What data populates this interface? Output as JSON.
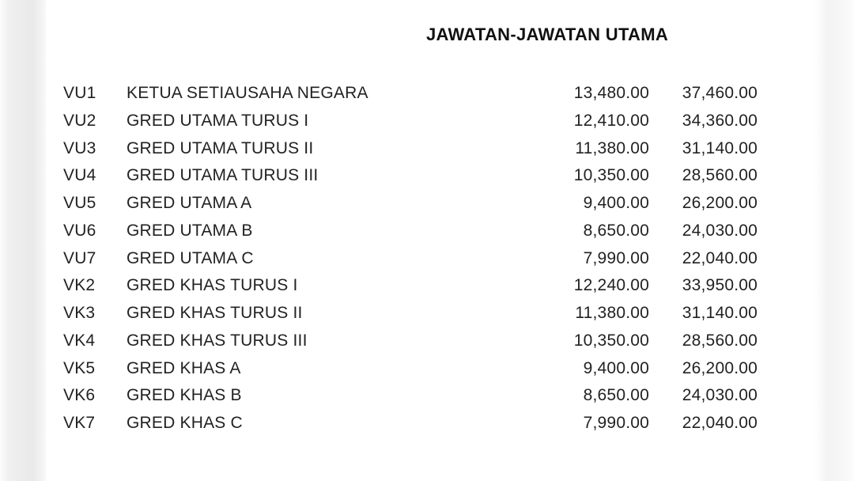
{
  "document": {
    "title": "JAWATAN-JAWATAN UTAMA"
  },
  "colors": {
    "page_background": "#ffffff",
    "text": "#222222",
    "title_text": "#111111",
    "edge_shadow": "#e9e9e9"
  },
  "table": {
    "rows": [
      {
        "code": "VU1",
        "name": "KETUA SETIAUSAHA NEGARA",
        "min": "13,480.00",
        "max": "37,460.00"
      },
      {
        "code": "VU2",
        "name": "GRED UTAMA TURUS I",
        "min": "12,410.00",
        "max": "34,360.00"
      },
      {
        "code": "VU3",
        "name": "GRED UTAMA TURUS II",
        "min": "11,380.00",
        "max": "31,140.00"
      },
      {
        "code": "VU4",
        "name": "GRED UTAMA TURUS III",
        "min": "10,350.00",
        "max": "28,560.00"
      },
      {
        "code": "VU5",
        "name": "GRED UTAMA A",
        "min": "9,400.00",
        "max": "26,200.00"
      },
      {
        "code": "VU6",
        "name": "GRED UTAMA B",
        "min": "8,650.00",
        "max": "24,030.00"
      },
      {
        "code": "VU7",
        "name": "GRED UTAMA C",
        "min": "7,990.00",
        "max": "22,040.00"
      },
      {
        "code": "VK2",
        "name": "GRED KHAS TURUS I",
        "min": "12,240.00",
        "max": "33,950.00"
      },
      {
        "code": "VK3",
        "name": "GRED KHAS TURUS II",
        "min": "11,380.00",
        "max": "31,140.00"
      },
      {
        "code": "VK4",
        "name": "GRED KHAS TURUS III",
        "min": "10,350.00",
        "max": "28,560.00"
      },
      {
        "code": "VK5",
        "name": "GRED KHAS A",
        "min": "9,400.00",
        "max": "26,200.00"
      },
      {
        "code": "VK6",
        "name": "GRED KHAS B",
        "min": "8,650.00",
        "max": "24,030.00"
      },
      {
        "code": "VK7",
        "name": "GRED KHAS C",
        "min": "7,990.00",
        "max": "22,040.00"
      }
    ]
  }
}
